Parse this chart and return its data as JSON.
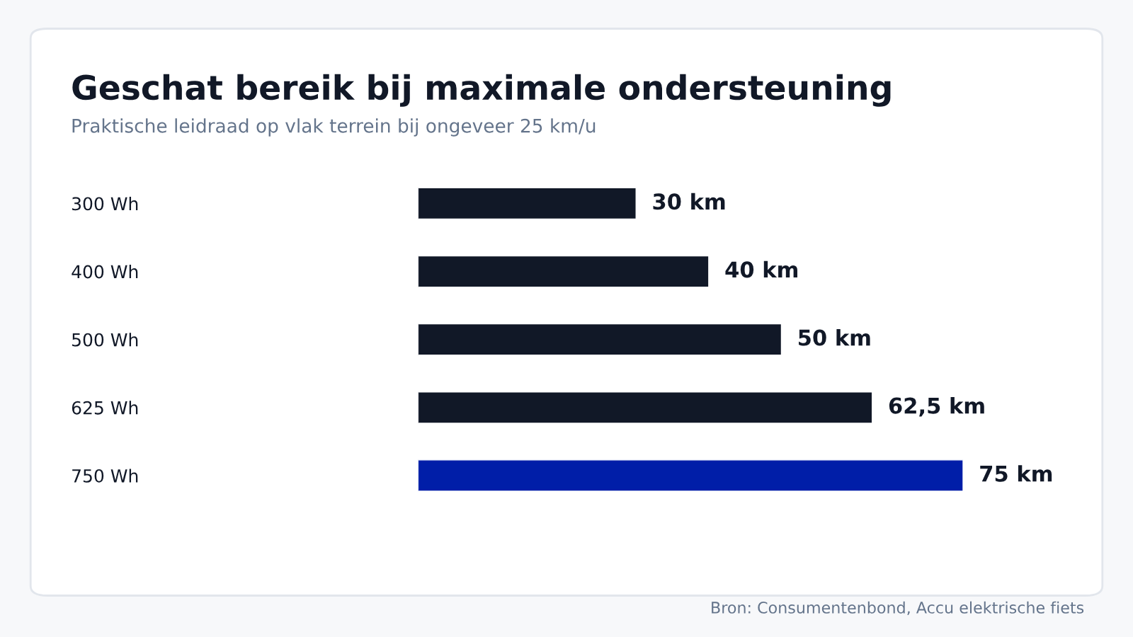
{
  "chart_data": {
    "type": "bar",
    "orientation": "horizontal",
    "title": "Geschat bereik bij maximale ondersteuning",
    "subtitle": "Praktische leidraad op vlak terrein bij ongeveer 25 km/u",
    "categories": [
      "300 Wh",
      "400 Wh",
      "500 Wh",
      "625 Wh",
      "750 Wh"
    ],
    "values": [
      30,
      40,
      50,
      62.5,
      75
    ],
    "colors": [
      "#111827",
      "#111827",
      "#111827",
      "#111827",
      "#001ea8"
    ],
    "value_labels": [
      "30 km",
      "40 km",
      "50 km",
      "62,5 km",
      "75 km"
    ],
    "annotations": [
      "Bron: Consumentenbond, Accu elektrische fiets"
    ],
    "grid": false,
    "legend": false
  }
}
